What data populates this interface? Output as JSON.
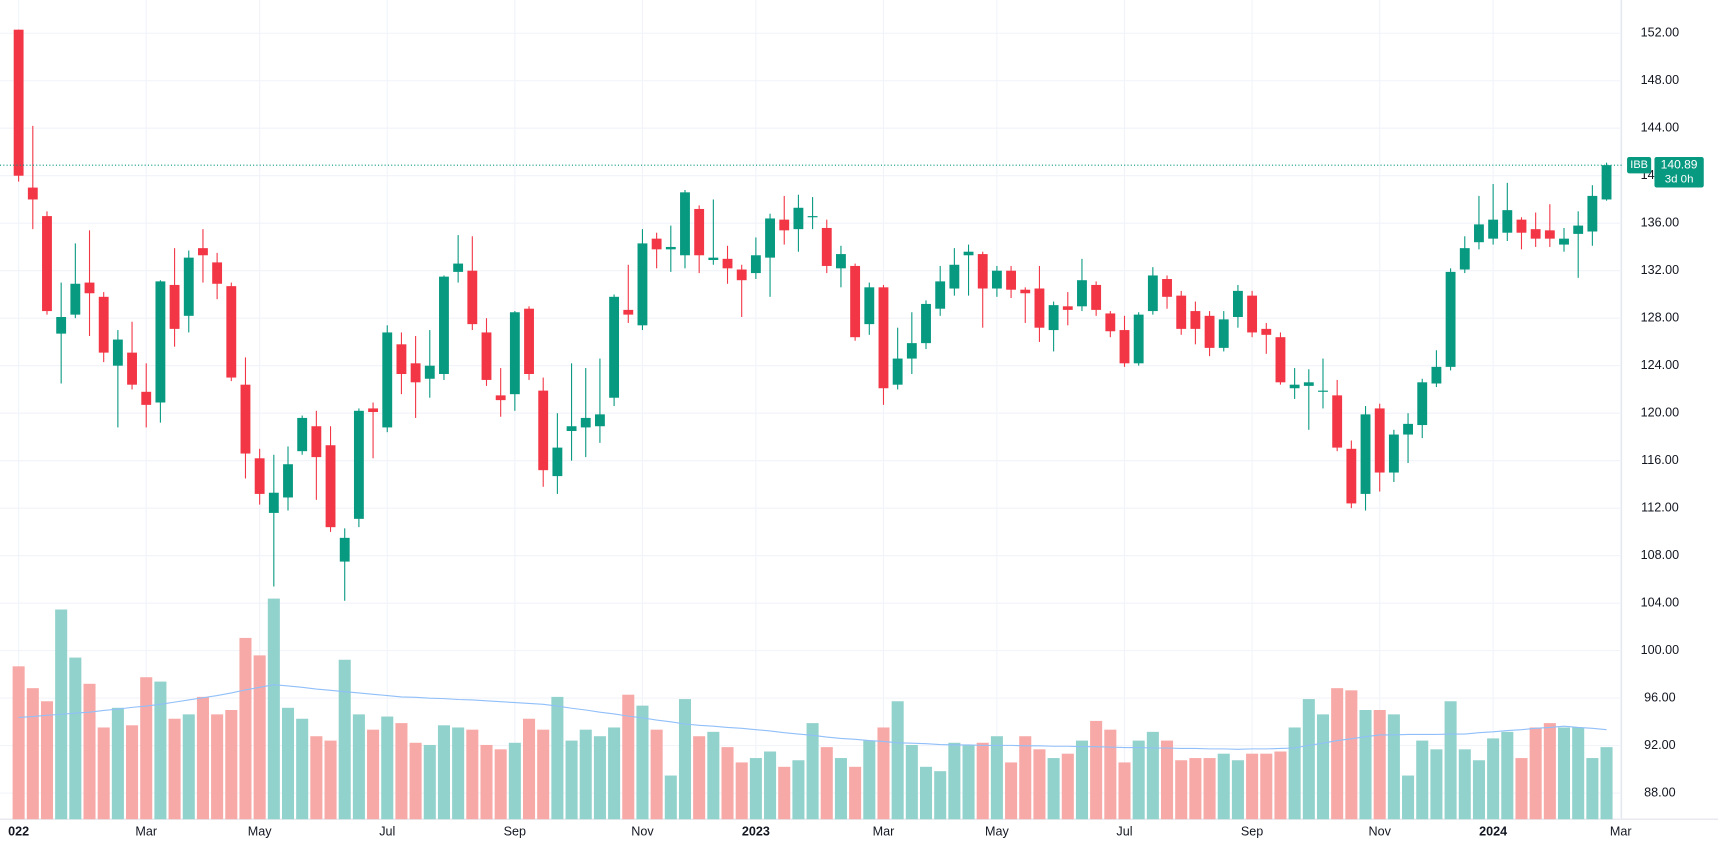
{
  "chart_data": {
    "type": "candlestick",
    "symbol": "IBB",
    "countdown": "3d 0h",
    "up_color": "#089981",
    "down_color": "#f23645",
    "up_volume_color": "#92d2cc",
    "down_volume_color": "#f7a9a7",
    "volume_ma_color": "#90bff9",
    "grid": true,
    "ylim": [
      85.8,
      154.8
    ],
    "yticks": [
      {
        "value": 88,
        "label": "88.00"
      },
      {
        "value": 92,
        "label": "92.00"
      },
      {
        "value": 96,
        "label": "96.00"
      },
      {
        "value": 100,
        "label": "100.00"
      },
      {
        "value": 104,
        "label": "104.00"
      },
      {
        "value": 108,
        "label": "108.00"
      },
      {
        "value": 112,
        "label": "112.00"
      },
      {
        "value": 116,
        "label": "116.00"
      },
      {
        "value": 120,
        "label": "120.00"
      },
      {
        "value": 124,
        "label": "124.00"
      },
      {
        "value": 128,
        "label": "128.00"
      },
      {
        "value": 132,
        "label": "132.00"
      },
      {
        "value": 136,
        "label": "136.00"
      },
      {
        "value": 140,
        "label": "140.00"
      },
      {
        "value": 144,
        "label": "144.00"
      },
      {
        "value": 148,
        "label": "148.00"
      },
      {
        "value": 152,
        "label": "152.00"
      }
    ],
    "volume_ylim": [
      0,
      5.5
    ],
    "categories": [
      "022",
      null,
      null,
      null,
      null,
      null,
      null,
      null,
      null,
      "Mar",
      null,
      null,
      null,
      null,
      null,
      null,
      null,
      "May",
      null,
      null,
      null,
      null,
      null,
      null,
      null,
      null,
      "Jul",
      null,
      null,
      null,
      null,
      null,
      null,
      null,
      null,
      "Sep",
      null,
      null,
      null,
      null,
      null,
      null,
      null,
      null,
      "Nov",
      null,
      null,
      null,
      null,
      null,
      null,
      null,
      "2023",
      null,
      null,
      null,
      null,
      null,
      null,
      null,
      null,
      "Mar",
      null,
      null,
      null,
      null,
      null,
      null,
      null,
      "May",
      null,
      null,
      null,
      null,
      null,
      null,
      null,
      null,
      "Jul",
      null,
      null,
      null,
      null,
      null,
      null,
      null,
      null,
      "Sep",
      null,
      null,
      null,
      null,
      null,
      null,
      null,
      null,
      "Nov",
      null,
      null,
      null,
      null,
      null,
      null,
      null,
      "2024",
      null,
      null,
      null,
      null,
      null,
      null,
      null,
      null,
      "Mar"
    ],
    "open": [
      152.3,
      139.0,
      136.6,
      126.7,
      128.3,
      131.0,
      129.8,
      124.0,
      125.1,
      121.8,
      120.9,
      130.8,
      128.2,
      133.9,
      132.7,
      130.7,
      122.4,
      116.2,
      111.6,
      112.9,
      116.8,
      118.9,
      117.3,
      107.5,
      111.1,
      120.4,
      118.8,
      125.8,
      124.2,
      122.9,
      123.3,
      131.9,
      132.0,
      126.8,
      121.5,
      121.6,
      128.8,
      121.9,
      114.7,
      118.5,
      118.8,
      118.9,
      121.3,
      128.7,
      127.4,
      134.7,
      133.8,
      133.3,
      137.2,
      132.9,
      133.0,
      132.1,
      131.8,
      133.1,
      136.3,
      135.5,
      136.5,
      135.6,
      132.2,
      132.4,
      127.5,
      130.6,
      122.4,
      124.6,
      125.9,
      128.8,
      130.5,
      133.3,
      133.4,
      130.5,
      132.0,
      130.4,
      130.5,
      127.0,
      129.0,
      129.0,
      130.8,
      128.4,
      127.0,
      124.2,
      128.6,
      131.3,
      129.9,
      128.6,
      128.2,
      125.5,
      128.1,
      129.9,
      127.1,
      126.4,
      122.1,
      122.3,
      121.8,
      121.5,
      117.0,
      113.2,
      120.4,
      115.0,
      118.2,
      119.0,
      122.5,
      123.9,
      132.1,
      134.4,
      134.7,
      135.2,
      136.3,
      135.5,
      135.4,
      134.2,
      135.1,
      135.3,
      138.0,
      null
    ],
    "high": [
      152.3,
      144.2,
      137.0,
      131.0,
      134.3,
      135.4,
      130.2,
      127.0,
      127.7,
      124.2,
      131.2,
      133.9,
      133.7,
      135.5,
      133.5,
      131.0,
      124.7,
      117.0,
      116.5,
      117.2,
      119.8,
      120.2,
      118.9,
      110.3,
      120.4,
      120.9,
      127.4,
      126.8,
      126.5,
      127.0,
      131.6,
      135.0,
      134.9,
      128.0,
      123.8,
      128.6,
      129.0,
      123.0,
      120.0,
      124.2,
      123.8,
      124.6,
      130.0,
      132.5,
      135.5,
      135.2,
      135.8,
      138.8,
      137.5,
      138.0,
      134.1,
      132.5,
      134.8,
      136.8,
      138.3,
      138.4,
      138.2,
      136.3,
      134.1,
      132.6,
      131.0,
      130.8,
      127.2,
      128.5,
      129.5,
      132.4,
      133.9,
      134.2,
      133.6,
      132.4,
      132.4,
      130.6,
      132.4,
      129.4,
      130.2,
      133.0,
      131.1,
      128.6,
      128.2,
      128.5,
      132.3,
      131.6,
      130.3,
      129.4,
      128.6,
      128.6,
      130.8,
      130.3,
      127.6,
      126.8,
      123.8,
      123.7,
      124.6,
      122.8,
      117.7,
      120.6,
      120.8,
      118.6,
      120.0,
      122.9,
      125.3,
      132.2,
      134.9,
      138.3,
      139.3,
      139.4,
      136.5,
      136.9,
      137.6,
      135.6,
      137.0,
      139.2,
      141.1,
      null
    ],
    "low": [
      139.5,
      135.5,
      128.3,
      122.5,
      128.0,
      126.5,
      124.3,
      118.8,
      122.0,
      118.8,
      119.2,
      125.6,
      126.8,
      131.0,
      129.6,
      122.7,
      114.5,
      112.3,
      105.4,
      111.8,
      116.5,
      112.7,
      110.0,
      104.2,
      110.4,
      116.2,
      118.4,
      121.6,
      119.6,
      121.3,
      122.8,
      131.0,
      127.0,
      122.3,
      119.7,
      120.2,
      122.8,
      113.8,
      113.2,
      116.0,
      116.3,
      117.5,
      120.6,
      127.6,
      127.0,
      132.2,
      131.9,
      132.2,
      131.8,
      132.5,
      130.9,
      128.1,
      131.3,
      129.8,
      134.2,
      133.6,
      135.5,
      131.8,
      130.6,
      126.1,
      126.6,
      120.7,
      122.0,
      123.3,
      125.4,
      128.2,
      129.9,
      129.9,
      127.2,
      129.8,
      129.7,
      127.6,
      126.0,
      125.2,
      127.4,
      128.6,
      128.2,
      126.4,
      123.9,
      124.0,
      128.3,
      128.8,
      126.6,
      125.8,
      124.8,
      125.2,
      127.2,
      126.4,
      125.0,
      122.4,
      121.2,
      118.6,
      120.4,
      116.8,
      112.0,
      111.8,
      113.4,
      114.2,
      115.8,
      117.9,
      122.2,
      123.6,
      131.8,
      133.8,
      134.2,
      134.5,
      133.8,
      134.0,
      134.0,
      133.6,
      131.4,
      134.1,
      137.9,
      null
    ],
    "close": [
      140.0,
      138.0,
      128.6,
      128.1,
      130.9,
      130.1,
      125.1,
      126.2,
      122.4,
      120.7,
      131.1,
      127.1,
      133.1,
      133.3,
      130.9,
      123.0,
      116.6,
      113.2,
      113.3,
      115.7,
      119.6,
      116.3,
      110.4,
      109.5,
      120.2,
      120.1,
      126.8,
      123.3,
      122.6,
      124.0,
      131.5,
      132.6,
      127.5,
      122.8,
      121.1,
      128.5,
      123.3,
      115.2,
      117.1,
      118.9,
      119.6,
      119.9,
      129.8,
      128.3,
      134.3,
      133.8,
      134.0,
      138.6,
      133.3,
      133.1,
      132.2,
      131.2,
      133.3,
      136.4,
      135.4,
      137.3,
      136.6,
      132.4,
      133.4,
      126.4,
      130.6,
      122.1,
      124.6,
      125.9,
      129.2,
      131.1,
      132.5,
      133.6,
      130.5,
      132.0,
      130.4,
      130.1,
      127.2,
      129.1,
      128.7,
      131.2,
      128.7,
      126.9,
      124.2,
      128.3,
      131.6,
      129.8,
      127.1,
      127.1,
      125.5,
      127.9,
      130.3,
      126.8,
      126.6,
      122.6,
      122.4,
      122.6,
      121.9,
      117.1,
      112.4,
      119.9,
      115.0,
      118.2,
      119.1,
      122.6,
      123.9,
      131.9,
      133.9,
      135.9,
      136.3,
      137.1,
      135.2,
      134.7,
      134.7,
      134.7,
      135.8,
      138.3,
      140.89,
      null
    ],
    "volume": [
      3.5,
      3.0,
      2.7,
      4.8,
      3.7,
      3.1,
      2.1,
      2.55,
      2.15,
      3.25,
      3.15,
      2.3,
      2.4,
      2.8,
      2.4,
      2.5,
      4.15,
      3.75,
      5.05,
      2.55,
      2.3,
      1.9,
      1.8,
      3.65,
      2.4,
      2.05,
      2.35,
      2.2,
      1.75,
      1.7,
      2.15,
      2.1,
      2.05,
      1.7,
      1.6,
      1.75,
      2.3,
      2.05,
      2.8,
      1.8,
      2.05,
      1.9,
      2.1,
      2.85,
      2.6,
      2.05,
      1.0,
      2.75,
      1.9,
      2.0,
      1.65,
      1.3,
      1.4,
      1.55,
      1.2,
      1.35,
      2.2,
      1.65,
      1.4,
      1.2,
      1.8,
      2.1,
      2.7,
      1.7,
      1.2,
      1.1,
      1.75,
      1.7,
      1.75,
      1.9,
      1.3,
      1.9,
      1.6,
      1.4,
      1.5,
      1.8,
      2.25,
      2.05,
      1.3,
      1.8,
      2.0,
      1.8,
      1.35,
      1.4,
      1.4,
      1.5,
      1.35,
      1.5,
      1.5,
      1.55,
      2.1,
      2.75,
      2.4,
      3.0,
      2.95,
      2.5,
      2.5,
      2.4,
      1.0,
      1.8,
      1.6,
      2.7,
      1.6,
      1.35,
      1.85,
      2.0,
      1.4,
      2.1,
      2.2,
      2.1,
      2.1,
      1.4,
      1.65,
      null
    ],
    "volume_ma": [
      2.33,
      2.35,
      2.38,
      2.4,
      2.43,
      2.45,
      2.49,
      2.52,
      2.56,
      2.59,
      2.63,
      2.68,
      2.73,
      2.78,
      2.83,
      2.89,
      2.96,
      3.02,
      3.08,
      3.05,
      3.02,
      2.98,
      2.95,
      2.92,
      2.89,
      2.86,
      2.83,
      2.8,
      2.79,
      2.77,
      2.76,
      2.74,
      2.73,
      2.71,
      2.69,
      2.67,
      2.65,
      2.63,
      2.59,
      2.54,
      2.5,
      2.45,
      2.41,
      2.36,
      2.32,
      2.27,
      2.23,
      2.18,
      2.15,
      2.13,
      2.1,
      2.08,
      2.05,
      2.02,
      1.98,
      1.95,
      1.92,
      1.88,
      1.85,
      1.83,
      1.8,
      1.78,
      1.75,
      1.74,
      1.73,
      1.71,
      1.7,
      1.7,
      1.69,
      1.69,
      1.69,
      1.68,
      1.68,
      1.67,
      1.67,
      1.66,
      1.66,
      1.65,
      1.64,
      1.64,
      1.63,
      1.63,
      1.62,
      1.62,
      1.61,
      1.61,
      1.6,
      1.61,
      1.61,
      1.62,
      1.63,
      1.69,
      1.74,
      1.8,
      1.84,
      1.89,
      1.93,
      1.93,
      1.94,
      1.94,
      1.94,
      1.95,
      1.95,
      1.98,
      2.0,
      2.03,
      2.05,
      2.08,
      2.1,
      2.13,
      2.1,
      2.08,
      2.05,
      null
    ]
  }
}
